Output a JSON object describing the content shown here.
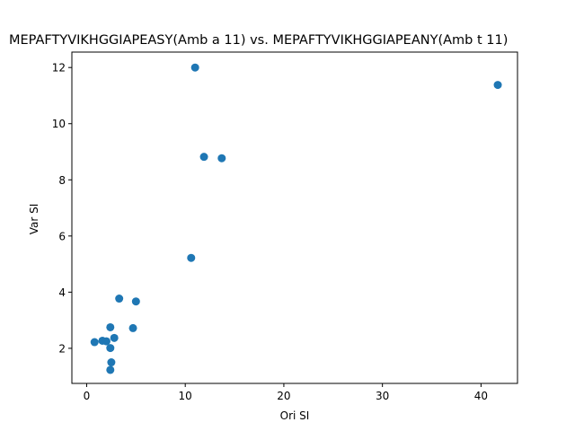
{
  "chart_data": {
    "type": "scatter",
    "title": "MEPAFTYVIKHGGIAPEASY(Amb a 11) vs. MEPAFTYVIKHGGIAPEANY(Amb t 11)",
    "xlabel": "Ori SI",
    "ylabel": "Var SI",
    "xlim": [
      -1.5,
      43.7
    ],
    "ylim": [
      0.75,
      12.55
    ],
    "xticks": [
      0,
      10,
      20,
      30,
      40
    ],
    "yticks": [
      2,
      4,
      6,
      8,
      10,
      12
    ],
    "grid": false,
    "marker_color": "#1f77b4",
    "series": [
      {
        "points": [
          [
            0.8,
            2.22
          ],
          [
            1.6,
            2.27
          ],
          [
            2.0,
            2.25
          ],
          [
            2.4,
            2.75
          ],
          [
            2.4,
            2.01
          ],
          [
            2.5,
            1.5
          ],
          [
            2.4,
            1.23
          ],
          [
            2.8,
            2.37
          ],
          [
            3.3,
            3.77
          ],
          [
            4.7,
            2.72
          ],
          [
            5.0,
            3.67
          ],
          [
            10.6,
            5.22
          ],
          [
            11.0,
            12.0
          ],
          [
            11.9,
            8.82
          ],
          [
            13.7,
            8.77
          ],
          [
            41.7,
            11.38
          ]
        ]
      }
    ]
  }
}
